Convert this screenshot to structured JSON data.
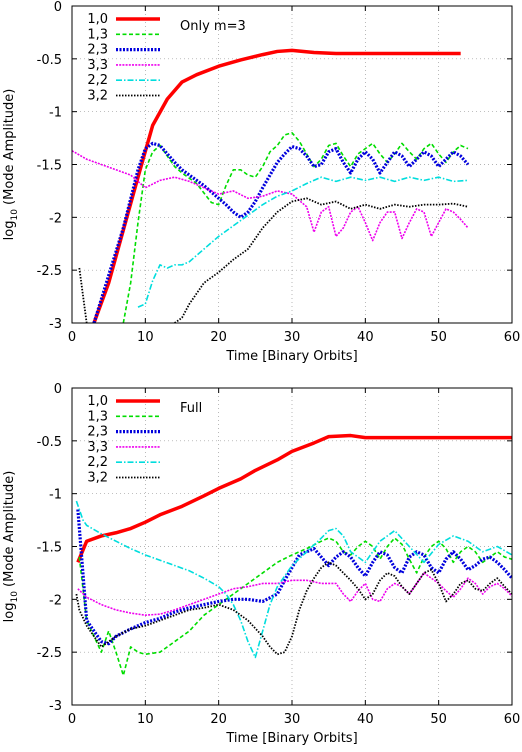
{
  "chart_data": [
    {
      "type": "line",
      "annotation": "Only m=3",
      "xlabel": "Time [Binary Orbits]",
      "ylabel_main": "log",
      "ylabel_sub": "10",
      "ylabel_rest": " (Mode Amplitude)",
      "xlim": [
        0,
        60
      ],
      "ylim": [
        -3,
        0
      ],
      "xticks": [
        0,
        10,
        20,
        30,
        40,
        50,
        60
      ],
      "yticks": [
        0,
        -0.5,
        -1,
        -1.5,
        -2,
        -2.5,
        -3
      ],
      "ytick_labels": [
        "0",
        "-0.5",
        "-1",
        "-1.5",
        "-2",
        "-2.5",
        "-3"
      ],
      "grid": true,
      "legend_position": "top-left",
      "series": [
        {
          "name": "1,0",
          "color": "#ff0000",
          "width": 3.5,
          "dash": "",
          "x": [
            3,
            5,
            7,
            9,
            11,
            13,
            15,
            17,
            20,
            23,
            26,
            28,
            30,
            33,
            36,
            40,
            45,
            50,
            53
          ],
          "y": [
            -3,
            -2.62,
            -2.12,
            -1.62,
            -1.13,
            -0.88,
            -0.72,
            -0.65,
            -0.57,
            -0.51,
            -0.46,
            -0.43,
            -0.42,
            -0.44,
            -0.45,
            -0.45,
            -0.45,
            -0.45,
            -0.45
          ]
        },
        {
          "name": "1,3",
          "color": "#00dd00",
          "width": 1.6,
          "dash": "4,2.5",
          "x": [
            7,
            8,
            9,
            10,
            11,
            12,
            13,
            14,
            15,
            17,
            19,
            20,
            21,
            22,
            23,
            24,
            25,
            26,
            27,
            28,
            29,
            30,
            31,
            32,
            33,
            34,
            35,
            36,
            37,
            38,
            39,
            40,
            41,
            42,
            43,
            44,
            45,
            46,
            47,
            48,
            49,
            50,
            51,
            52,
            53,
            54
          ],
          "y": [
            -3,
            -2.62,
            -2.05,
            -1.55,
            -1.38,
            -1.32,
            -1.42,
            -1.52,
            -1.58,
            -1.68,
            -1.86,
            -1.88,
            -1.7,
            -1.55,
            -1.55,
            -1.6,
            -1.62,
            -1.52,
            -1.38,
            -1.32,
            -1.22,
            -1.2,
            -1.28,
            -1.4,
            -1.52,
            -1.45,
            -1.32,
            -1.3,
            -1.42,
            -1.52,
            -1.4,
            -1.35,
            -1.3,
            -1.4,
            -1.48,
            -1.4,
            -1.3,
            -1.38,
            -1.45,
            -1.35,
            -1.3,
            -1.4,
            -1.48,
            -1.38,
            -1.32,
            -1.35
          ]
        },
        {
          "name": "2,3",
          "color": "#0000dd",
          "width": 3.2,
          "dash": "2,1.5",
          "x": [
            3,
            5,
            7,
            9,
            10,
            11,
            12,
            13,
            14,
            15,
            16,
            17,
            18,
            19,
            20,
            21,
            22,
            23,
            24,
            25,
            26,
            27,
            28,
            29,
            30,
            31,
            32,
            33,
            34,
            35,
            36,
            37,
            38,
            39,
            40,
            41,
            42,
            43,
            44,
            45,
            46,
            47,
            48,
            49,
            50,
            51,
            52,
            53,
            54
          ],
          "y": [
            -3,
            -2.55,
            -2.1,
            -1.55,
            -1.35,
            -1.3,
            -1.32,
            -1.4,
            -1.48,
            -1.55,
            -1.6,
            -1.65,
            -1.7,
            -1.76,
            -1.82,
            -1.88,
            -1.95,
            -2,
            -1.95,
            -1.85,
            -1.72,
            -1.6,
            -1.48,
            -1.4,
            -1.33,
            -1.35,
            -1.42,
            -1.52,
            -1.5,
            -1.38,
            -1.35,
            -1.48,
            -1.58,
            -1.45,
            -1.38,
            -1.45,
            -1.58,
            -1.48,
            -1.38,
            -1.42,
            -1.52,
            -1.45,
            -1.38,
            -1.42,
            -1.52,
            -1.45,
            -1.38,
            -1.42,
            -1.5
          ]
        },
        {
          "name": "3,3",
          "color": "#ee00ee",
          "width": 1.6,
          "dash": "2,1.2",
          "x": [
            0,
            2,
            4,
            6,
            8,
            10,
            12,
            14,
            16,
            18,
            20,
            22,
            24,
            26,
            28,
            30,
            32,
            33,
            34,
            35,
            36,
            37,
            38,
            39,
            40,
            41,
            42,
            43,
            44,
            45,
            46,
            47,
            48,
            49,
            50,
            51,
            52,
            53,
            54
          ],
          "y": [
            -1.37,
            -1.45,
            -1.5,
            -1.55,
            -1.6,
            -1.72,
            -1.65,
            -1.62,
            -1.66,
            -1.72,
            -1.78,
            -1.75,
            -1.82,
            -1.8,
            -1.75,
            -1.78,
            -1.9,
            -2.14,
            -1.95,
            -1.9,
            -2.18,
            -2.1,
            -1.95,
            -1.9,
            -2.05,
            -2.22,
            -2.05,
            -1.95,
            -1.95,
            -2.2,
            -2.05,
            -1.92,
            -1.95,
            -2.18,
            -2.05,
            -1.92,
            -1.95,
            -2.02,
            -2.1
          ]
        },
        {
          "name": "2,2",
          "color": "#00dddd",
          "width": 1.6,
          "dash": "6,2,1.5,2",
          "x": [
            9,
            10,
            11,
            12,
            13,
            14,
            15,
            16,
            18,
            20,
            22,
            24,
            26,
            28,
            30,
            32,
            34,
            36,
            38,
            40,
            42,
            44,
            46,
            48,
            50,
            52,
            54
          ],
          "y": [
            -2.85,
            -2.82,
            -2.6,
            -2.45,
            -2.48,
            -2.45,
            -2.45,
            -2.42,
            -2.3,
            -2.18,
            -2.08,
            -1.98,
            -1.88,
            -1.8,
            -1.75,
            -1.68,
            -1.62,
            -1.66,
            -1.62,
            -1.65,
            -1.62,
            -1.66,
            -1.62,
            -1.65,
            -1.62,
            -1.66,
            -1.65
          ]
        },
        {
          "name": "3,2",
          "color": "#000000",
          "width": 1.8,
          "dash": "1.5,1.5",
          "x": [
            1,
            2,
            3,
            14,
            15,
            16,
            17,
            18,
            20,
            22,
            24,
            25,
            26,
            28,
            30,
            32,
            34,
            36,
            38,
            40,
            42,
            44,
            46,
            48,
            50,
            52,
            54
          ],
          "y": [
            -2.48,
            -3,
            null,
            -3,
            -2.95,
            -2.82,
            -2.72,
            -2.62,
            -2.52,
            -2.4,
            -2.3,
            -2.2,
            -2.1,
            -1.95,
            -1.85,
            -1.82,
            -1.88,
            -1.85,
            -1.92,
            -1.88,
            -1.92,
            -1.88,
            -1.9,
            -1.88,
            -1.88,
            -1.87,
            -1.9
          ]
        }
      ]
    },
    {
      "type": "line",
      "annotation": "Full",
      "xlabel": "Time [Binary Orbits]",
      "ylabel_main": "log",
      "ylabel_sub": "10",
      "ylabel_rest": " (Mode Amplitude)",
      "xlim": [
        0,
        60
      ],
      "ylim": [
        -3,
        0
      ],
      "xticks": [
        0,
        10,
        20,
        30,
        40,
        50,
        60
      ],
      "yticks": [
        0,
        -0.5,
        -1,
        -1.5,
        -2,
        -2.5,
        -3
      ],
      "ytick_labels": [
        "0",
        "-0.5",
        "-1",
        "-1.5",
        "-2",
        "-2.5",
        "-3"
      ],
      "grid": true,
      "legend_position": "top-left",
      "series": [
        {
          "name": "1,0",
          "color": "#ff0000",
          "width": 3.5,
          "dash": "",
          "x": [
            0.8,
            2,
            4,
            6,
            8,
            10,
            12,
            15,
            18,
            20,
            23,
            25,
            28,
            30,
            33,
            35,
            38,
            40,
            45,
            50,
            55,
            60
          ],
          "y": [
            -1.65,
            -1.45,
            -1.4,
            -1.37,
            -1.33,
            -1.27,
            -1.2,
            -1.12,
            -1.02,
            -0.95,
            -0.86,
            -0.78,
            -0.68,
            -0.6,
            -0.52,
            -0.46,
            -0.45,
            -0.47,
            -0.47,
            -0.47,
            -0.47,
            -0.47
          ]
        },
        {
          "name": "1,3",
          "color": "#00dd00",
          "width": 1.6,
          "dash": "4,2.5",
          "x": [
            1,
            2,
            3,
            4,
            5,
            6,
            7,
            8,
            9,
            10,
            12,
            14,
            16,
            18,
            20,
            22,
            24,
            26,
            28,
            30,
            32,
            34,
            35,
            36,
            37,
            38,
            39,
            40,
            41,
            42,
            43,
            44,
            45,
            46,
            47,
            48,
            49,
            50,
            51,
            52,
            53,
            54,
            55,
            56,
            57,
            58,
            59,
            60
          ],
          "y": [
            -1.6,
            -2.2,
            -2.35,
            -2.5,
            -2.3,
            -2.5,
            -2.72,
            -2.45,
            -2.5,
            -2.52,
            -2.5,
            -2.4,
            -2.3,
            -2.15,
            -2.05,
            -1.95,
            -1.85,
            -1.75,
            -1.65,
            -1.58,
            -1.52,
            -1.45,
            -1.42,
            -1.45,
            -1.55,
            -1.58,
            -1.5,
            -1.45,
            -1.5,
            -1.62,
            -1.5,
            -1.42,
            -1.48,
            -1.62,
            -1.75,
            -1.6,
            -1.5,
            -1.45,
            -1.52,
            -1.65,
            -1.55,
            -1.5,
            -1.55,
            -1.65,
            -1.6,
            -1.55,
            -1.6,
            -1.62
          ]
        },
        {
          "name": "2,3",
          "color": "#0000dd",
          "width": 3.2,
          "dash": "2,1.5",
          "x": [
            0.8,
            2,
            3,
            4,
            5,
            6,
            8,
            10,
            12,
            14,
            16,
            18,
            20,
            22,
            24,
            26,
            28,
            29,
            30,
            31,
            32,
            33,
            34,
            35,
            36,
            37,
            38,
            39,
            40,
            41,
            42,
            43,
            44,
            45,
            46,
            47,
            48,
            49,
            50,
            51,
            52,
            53,
            54,
            55,
            56,
            57,
            58,
            59,
            60
          ],
          "y": [
            -1.15,
            -2.2,
            -2.3,
            -2.4,
            -2.42,
            -2.35,
            -2.28,
            -2.22,
            -2.18,
            -2.12,
            -2.08,
            -2.05,
            -2.02,
            -2,
            -2,
            -2.02,
            -1.95,
            -1.82,
            -1.7,
            -1.58,
            -1.55,
            -1.52,
            -1.6,
            -1.68,
            -1.6,
            -1.55,
            -1.6,
            -1.7,
            -1.78,
            -1.65,
            -1.55,
            -1.58,
            -1.7,
            -1.75,
            -1.6,
            -1.55,
            -1.58,
            -1.7,
            -1.75,
            -1.62,
            -1.55,
            -1.62,
            -1.72,
            -1.68,
            -1.62,
            -1.6,
            -1.65,
            -1.72,
            -1.8
          ]
        },
        {
          "name": "3,3",
          "color": "#ee00ee",
          "width": 1.6,
          "dash": "2,1.2",
          "x": [
            0.8,
            2,
            4,
            6,
            8,
            10,
            12,
            14,
            16,
            18,
            20,
            22,
            24,
            26,
            28,
            30,
            32,
            34,
            36,
            37,
            38,
            39,
            40,
            41,
            42,
            43,
            44,
            45,
            46,
            47,
            48,
            49,
            50,
            51,
            52,
            53,
            54,
            55,
            56,
            57,
            58,
            59,
            60
          ],
          "y": [
            -1.9,
            -1.98,
            -2.05,
            -2.1,
            -2.13,
            -2.15,
            -2.14,
            -2.1,
            -2.05,
            -2,
            -1.95,
            -1.9,
            -1.88,
            -1.85,
            -1.85,
            -1.82,
            -1.82,
            -1.85,
            -1.85,
            -1.95,
            -2.02,
            -1.92,
            -1.85,
            -2,
            -2.02,
            -1.9,
            -1.85,
            -1.88,
            -1.95,
            -1.85,
            -1.75,
            -1.8,
            -1.85,
            -1.92,
            -1.98,
            -1.9,
            -1.8,
            -1.85,
            -1.95,
            -1.88,
            -1.85,
            -1.9,
            -1.97
          ]
        },
        {
          "name": "2,2",
          "color": "#00dddd",
          "width": 1.6,
          "dash": "6,2,1.5,2",
          "x": [
            0.6,
            1,
            1.5,
            2,
            4,
            6,
            8,
            10,
            12,
            14,
            16,
            18,
            20,
            21,
            22,
            23,
            24,
            25,
            26,
            27,
            28,
            30,
            32,
            34,
            35,
            36,
            37,
            38,
            40,
            42,
            44,
            46,
            48,
            50,
            52,
            54,
            56,
            58,
            60
          ],
          "y": [
            -1.07,
            -1.15,
            -1.25,
            -1.3,
            -1.38,
            -1.45,
            -1.52,
            -1.58,
            -1.63,
            -1.68,
            -1.73,
            -1.8,
            -1.88,
            -1.95,
            -2.05,
            -2.2,
            -2.4,
            -2.55,
            -2.3,
            -2.05,
            -1.88,
            -1.68,
            -1.55,
            -1.42,
            -1.35,
            -1.33,
            -1.4,
            -1.55,
            -1.65,
            -1.45,
            -1.35,
            -1.5,
            -1.65,
            -1.48,
            -1.4,
            -1.45,
            -1.55,
            -1.5,
            -1.58
          ]
        },
        {
          "name": "3,2",
          "color": "#000000",
          "width": 1.8,
          "dash": "1.5,1.5",
          "x": [
            0.6,
            1,
            2,
            3,
            4,
            6,
            8,
            10,
            12,
            14,
            16,
            18,
            20,
            22,
            24,
            26,
            27,
            28,
            29,
            30,
            31,
            32,
            33,
            34,
            35,
            36,
            37,
            38,
            39,
            40,
            41,
            42,
            43,
            44,
            45,
            46,
            47,
            48,
            49,
            50,
            51,
            52,
            53,
            54,
            55,
            56,
            57,
            58,
            59,
            60
          ],
          "y": [
            -1.95,
            -2.1,
            -2.25,
            -2.35,
            -2.45,
            -2.35,
            -2.28,
            -2.25,
            -2.2,
            -2.15,
            -2.1,
            -2.08,
            -2.05,
            -2.1,
            -2.2,
            -2.35,
            -2.45,
            -2.52,
            -2.5,
            -2.35,
            -2.1,
            -1.92,
            -1.8,
            -1.7,
            -1.65,
            -1.68,
            -1.75,
            -1.82,
            -1.9,
            -2,
            -1.95,
            -1.82,
            -1.75,
            -1.78,
            -1.88,
            -1.95,
            -1.85,
            -1.75,
            -1.72,
            -1.85,
            -2.02,
            -1.95,
            -1.85,
            -1.82,
            -1.9,
            -1.92,
            -1.85,
            -1.8,
            -1.88,
            -1.95
          ]
        }
      ]
    }
  ]
}
